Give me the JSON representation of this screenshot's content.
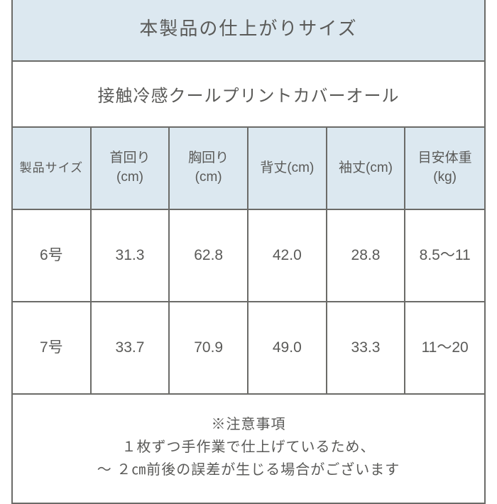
{
  "title": "本製品の仕上がりサイズ",
  "subtitle": "接触冷感クールプリントカバーオール",
  "colors": {
    "header_bg": "#dce8f0",
    "border": "#6b6b68",
    "text": "#5a5a58",
    "background": "#ffffff"
  },
  "columns": [
    {
      "label1": "製品サイズ",
      "label2": ""
    },
    {
      "label1": "首回り",
      "label2": "(cm)"
    },
    {
      "label1": "胸回り",
      "label2": "(cm)"
    },
    {
      "label1": "背丈(cm)",
      "label2": ""
    },
    {
      "label1": "袖丈(cm)",
      "label2": ""
    },
    {
      "label1": "目安体重",
      "label2": "(kg)"
    }
  ],
  "rows": [
    {
      "size": "6号",
      "neck": "31.3",
      "chest": "62.8",
      "back": "42.0",
      "sleeve": "28.8",
      "weight": "8.5～11"
    },
    {
      "size": "7号",
      "neck": "33.7",
      "chest": "70.9",
      "back": "49.0",
      "sleeve": "33.3",
      "weight": "11～20"
    }
  ],
  "footer": {
    "line1": "※注意事項",
    "line2": "１枚ずつ手作業で仕上げているため、",
    "line3": "～ ２㎝前後の誤差が生じる場合がございます"
  }
}
